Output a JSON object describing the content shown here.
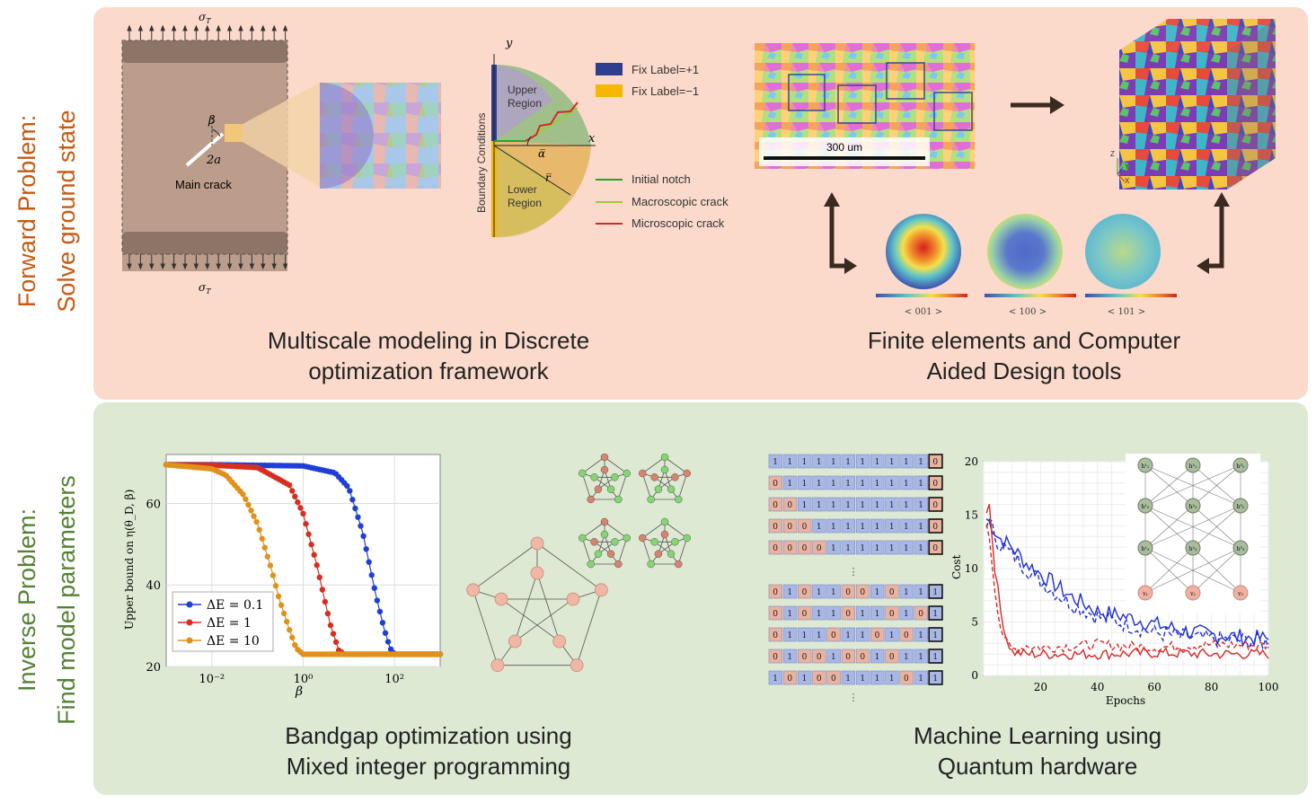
{
  "forward": {
    "line1": "Forward Problem:",
    "line2": "Solve ground state",
    "color": "#c55a11"
  },
  "inverse": {
    "line1": "Inverse Problem:",
    "line2": "Find model parameters",
    "color": "#548235"
  },
  "captions": {
    "multiscale": [
      "Multiscale modeling in Discrete",
      "optimization framework"
    ],
    "finite": [
      "Finite elements and Computer",
      "Aided Design tools"
    ],
    "bandgap": [
      "Bandgap optimization using",
      "Mixed integer programming"
    ],
    "ml": [
      "Machine Learning using",
      "Quantum hardware"
    ]
  },
  "crack": {
    "sigma": "σ",
    "sigma_sub": "T",
    "beta": "β",
    "two_a": "2a",
    "main_crack": "Main crack"
  },
  "boundary": {
    "y": "y",
    "x": "x",
    "alpha": "α̅",
    "r": "r̅",
    "upper": [
      "Upper",
      "Region"
    ],
    "lower": [
      "Lower",
      "Region"
    ],
    "bc": "Boundary Conditions",
    "legend": [
      {
        "label": "Fix Label=+1",
        "color": "#2e3f8f"
      },
      {
        "label": "Fix Label=−1",
        "color": "#f5b800"
      },
      {
        "label": "Initial notch",
        "color": "#2ca02c"
      },
      {
        "label": "Macroscopic crack",
        "color": "#9acd32"
      },
      {
        "label": "Microscopic crack",
        "color": "#d62728"
      }
    ]
  },
  "microstructure": {
    "scale": "300 um",
    "axes": [
      "Z",
      "Y",
      "X"
    ]
  },
  "pole_figures": [
    "< 001 >",
    "< 100 >",
    "< 101 >"
  ],
  "chart_data": [
    {
      "type": "scatter",
      "title": "",
      "xlabel": "β",
      "ylabel": "Upper bound on η(θ_D, β)",
      "xscale": "log",
      "xlim": [
        0.001,
        1000
      ],
      "ylim": [
        20,
        72
      ],
      "xticks": [
        "10⁻²",
        "10⁰",
        "10²"
      ],
      "xtick_values": [
        0.01,
        1,
        100
      ],
      "yticks": [
        20,
        40,
        60
      ],
      "grid": true,
      "legend_position": "lower-left",
      "series": [
        {
          "name": "ΔE = 0.1",
          "color": "#1f3fd6",
          "x": [
            0.001,
            0.01,
            1,
            5,
            10,
            20,
            40,
            60,
            80,
            100,
            1000
          ],
          "y": [
            69.5,
            69.5,
            69.2,
            67.5,
            63.8,
            53,
            37,
            29,
            24.5,
            23,
            23
          ]
        },
        {
          "name": "ΔE = 1",
          "color": "#d62f1f",
          "x": [
            0.001,
            0.01,
            0.1,
            0.5,
            1,
            2,
            3,
            4,
            6,
            8,
            1000
          ],
          "y": [
            69.5,
            69.4,
            68.8,
            64.5,
            57.5,
            44.8,
            36,
            30,
            24,
            23,
            23
          ]
        },
        {
          "name": "ΔE = 10",
          "color": "#e0911a",
          "x": [
            0.001,
            0.01,
            0.02,
            0.05,
            0.1,
            0.2,
            0.3,
            0.5,
            0.7,
            1,
            1000
          ],
          "y": [
            69.5,
            68.5,
            67,
            62,
            55,
            44,
            36.5,
            29,
            24.5,
            23,
            23
          ]
        }
      ]
    },
    {
      "type": "line",
      "title": "",
      "xlabel": "Epochs",
      "ylabel": "Cost",
      "xlim": [
        0,
        100
      ],
      "ylim": [
        0,
        20
      ],
      "xticks": [
        20,
        40,
        60,
        80,
        100
      ],
      "yticks": [
        0,
        5,
        10,
        15,
        20
      ],
      "series": [
        {
          "style": "solid",
          "color": "#1f2fd0",
          "x": [
            0,
            3,
            5,
            10,
            15,
            20,
            30,
            40,
            50,
            60,
            70,
            80,
            90,
            100
          ],
          "y": [
            15,
            14,
            13,
            12,
            10.5,
            9.5,
            7.5,
            6,
            5.5,
            4.8,
            4.2,
            3.8,
            3.6,
            3.4
          ]
        },
        {
          "style": "dashed",
          "color": "#1f2fd0",
          "x": [
            0,
            3,
            5,
            10,
            15,
            20,
            30,
            40,
            50,
            60,
            70,
            80,
            90,
            100
          ],
          "y": [
            14.8,
            13.8,
            12.5,
            11.3,
            10,
            8.8,
            6.8,
            5.5,
            4.8,
            4,
            3.6,
            3.4,
            3.3,
            3.1
          ]
        },
        {
          "style": "solid",
          "color": "#d62828",
          "x": [
            0,
            2,
            4,
            6,
            8,
            10,
            15,
            20,
            40,
            60,
            80,
            100
          ],
          "y": [
            15,
            16,
            10,
            6,
            3.5,
            2.2,
            2,
            2,
            2,
            2.1,
            2,
            2
          ]
        },
        {
          "style": "dashed",
          "color": "#d62828",
          "x": [
            0,
            2,
            4,
            6,
            8,
            10,
            15,
            20,
            40,
            60,
            80,
            100
          ],
          "y": [
            14.5,
            13,
            8,
            4.5,
            3,
            2.4,
            2.8,
            2.6,
            2.9,
            2.6,
            2.9,
            2.8
          ]
        }
      ]
    }
  ],
  "qubo_rows": [
    [
      1,
      1,
      1,
      1,
      1,
      1,
      1,
      1,
      1,
      1,
      1,
      0
    ],
    [
      0,
      1,
      1,
      1,
      1,
      1,
      1,
      1,
      1,
      1,
      1,
      0
    ],
    [
      0,
      0,
      1,
      1,
      1,
      1,
      1,
      1,
      1,
      1,
      1,
      0
    ],
    [
      0,
      0,
      0,
      1,
      1,
      1,
      1,
      1,
      1,
      1,
      1,
      0
    ],
    [
      0,
      0,
      0,
      0,
      1,
      1,
      1,
      1,
      1,
      1,
      1,
      0
    ],
    [
      0,
      1,
      0,
      1,
      1,
      0,
      0,
      1,
      0,
      1,
      1,
      1
    ],
    [
      0,
      1,
      0,
      1,
      1,
      0,
      1,
      1,
      0,
      1,
      0,
      1
    ],
    [
      0,
      1,
      1,
      1,
      0,
      1,
      1,
      0,
      1,
      0,
      1,
      1
    ],
    [
      0,
      1,
      0,
      0,
      1,
      0,
      0,
      1,
      0,
      1,
      1,
      1
    ],
    [
      1,
      0,
      1,
      0,
      0,
      1,
      1,
      1,
      1,
      0,
      1,
      1
    ]
  ],
  "qubo_colors": {
    "one": "#a9b7e6",
    "zero": "#eab29f"
  },
  "ellipsis": "⋮",
  "nn_labels": [
    "h¹₁",
    "h²₁",
    "h³₁",
    "h¹₂",
    "h²₂",
    "h³₂",
    "h¹₃",
    "h²₃",
    "h³₃"
  ],
  "nn_inputs": [
    "v₁",
    "v₂",
    "v₃"
  ]
}
